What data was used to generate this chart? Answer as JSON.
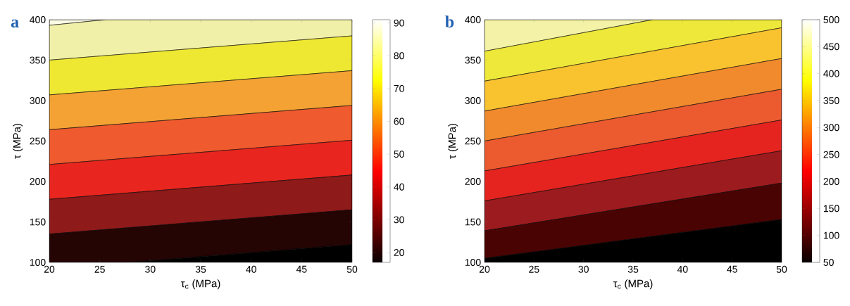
{
  "chart_data": [
    {
      "type": "area",
      "title": "a",
      "xlabel": "τ$_{c}$ (MPa)",
      "ylabel": "τ (MPa)",
      "xlim": [
        20,
        50
      ],
      "ylim": [
        100,
        400
      ],
      "xticks": [
        20,
        25,
        30,
        35,
        40,
        45,
        50
      ],
      "yticks": [
        100,
        150,
        200,
        250,
        300,
        350,
        400
      ],
      "clim": [
        17,
        91
      ],
      "cticks": [
        20,
        30,
        40,
        50,
        60,
        70,
        80,
        90
      ],
      "series": [
        {
          "x": [
            20,
            50
          ],
          "values": [
            400,
            400
          ],
          "color": "#fbfbe6"
        },
        {
          "x": [
            20,
            25.6,
            50
          ],
          "values": [
            393,
            400,
            400
          ],
          "color": "#f1f0a8"
        },
        {
          "x": [
            20,
            50
          ],
          "values": [
            350,
            380
          ],
          "color": "#efe833"
        },
        {
          "x": [
            20,
            50
          ],
          "values": [
            307,
            337
          ],
          "color": "#f4a233"
        },
        {
          "x": [
            20,
            50
          ],
          "values": [
            264,
            294
          ],
          "color": "#ef5a2e"
        },
        {
          "x": [
            20,
            50
          ],
          "values": [
            221,
            251
          ],
          "color": "#e8261f"
        },
        {
          "x": [
            20,
            50
          ],
          "values": [
            178,
            208
          ],
          "color": "#8e1a1a"
        },
        {
          "x": [
            20,
            50
          ],
          "values": [
            135,
            165
          ],
          "color": "#250404"
        },
        {
          "x": [
            20,
            28,
            50
          ],
          "values": [
            100,
            100,
            122
          ],
          "color": "#000000"
        }
      ]
    },
    {
      "type": "area",
      "title": "b",
      "xlabel": "τ$_{c}$ (MPa)",
      "ylabel": "τ (MPa)",
      "xlim": [
        20,
        50
      ],
      "ylim": [
        100,
        400
      ],
      "xticks": [
        20,
        25,
        30,
        35,
        40,
        45,
        50
      ],
      "yticks": [
        100,
        150,
        200,
        250,
        300,
        350,
        400
      ],
      "clim": [
        50,
        500
      ],
      "cticks": [
        50,
        100,
        150,
        200,
        250,
        300,
        350,
        400,
        450,
        500
      ],
      "series": [
        {
          "x": [
            20,
            50
          ],
          "values": [
            400,
            400
          ],
          "color": "#f3f2a6"
        },
        {
          "x": [
            20,
            37,
            50
          ],
          "values": [
            361,
            400,
            400
          ],
          "color": "#eee83a"
        },
        {
          "x": [
            20,
            50
          ],
          "values": [
            324,
            390
          ],
          "color": "#f9c22f"
        },
        {
          "x": [
            20,
            50
          ],
          "values": [
            287,
            352
          ],
          "color": "#f18a2d"
        },
        {
          "x": [
            20,
            50
          ],
          "values": [
            250,
            314
          ],
          "color": "#ec5a30"
        },
        {
          "x": [
            20,
            50
          ],
          "values": [
            213,
            276
          ],
          "color": "#e6241f"
        },
        {
          "x": [
            20,
            50
          ],
          "values": [
            176,
            238
          ],
          "color": "#9c1b1f"
        },
        {
          "x": [
            20,
            50
          ],
          "values": [
            139,
            198
          ],
          "color": "#4a0303"
        },
        {
          "x": [
            20,
            50
          ],
          "values": [
            105,
            153
          ],
          "color": "#000000"
        }
      ]
    }
  ]
}
